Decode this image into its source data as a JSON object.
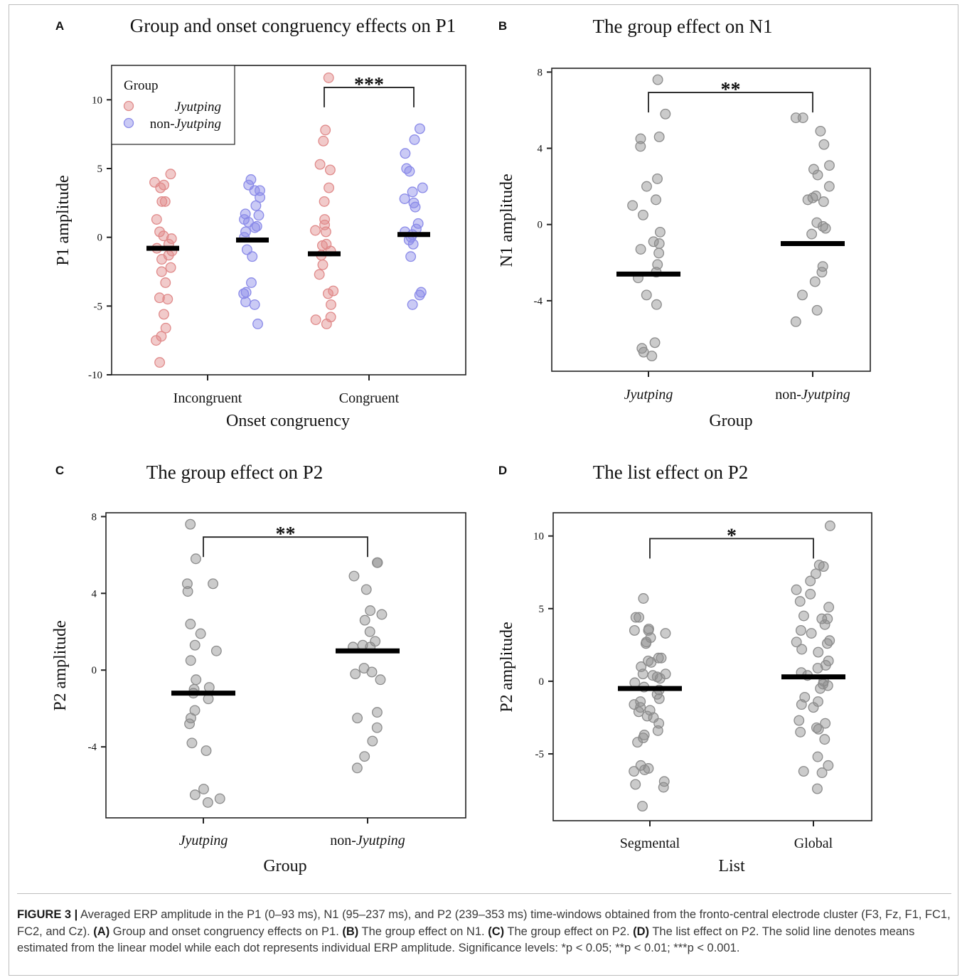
{
  "caption": {
    "label": "FIGURE 3 |",
    "segments": [
      {
        "t": " Averaged ERP amplitude in the P1 (0–93 ms), N1 (95–237 ms), and P2 (239–353 ms) time-windows obtained from the fronto-central electrode cluster (F3, Fz, F1, FC1, FC2, and Cz). ",
        "b": false
      },
      {
        "t": "(A)",
        "b": true
      },
      {
        "t": " Group and onset congruency effects on P1. ",
        "b": false
      },
      {
        "t": "(B)",
        "b": true
      },
      {
        "t": " The group effect on N1. ",
        "b": false
      },
      {
        "t": "(C)",
        "b": true
      },
      {
        "t": " The group effect on P2. ",
        "b": false
      },
      {
        "t": "(D)",
        "b": true
      },
      {
        "t": " The list effect on P2. The solid line denotes means estimated from the linear model while each dot represents individual ERP amplitude. Significance levels: *p < 0.05; **p < 0.01; ***p < 0.001.",
        "b": false
      }
    ]
  },
  "colors": {
    "jyutping": "#e08a8a",
    "non_jyutping": "#8a8ae8",
    "grey": "#8c8c8c",
    "mean": "#000000"
  },
  "chart_data": [
    {
      "letter": "A",
      "type": "scatter",
      "title": "Group and onset congruency effects on P1",
      "xlabel": "Onset congruency",
      "ylabel": "P1 amplitude",
      "ylim": [
        -10,
        12.5
      ],
      "yticks": [
        10,
        5,
        0,
        -5,
        -10
      ],
      "categories": [
        "Incongruent",
        "Congruent"
      ],
      "legend": {
        "title": "Group",
        "position": "top-left",
        "entries": [
          "Jyutping",
          "non-Jyutping"
        ]
      },
      "significance": {
        "label": "***",
        "between": [
          "Congruent / Jyutping",
          "Congruent / non-Jyutping"
        ]
      },
      "series": [
        {
          "name": "Jyutping",
          "color": "jyutping",
          "groups": [
            {
              "category": "Incongruent",
              "mean": -0.8,
              "points": [
                4.6,
                4.0,
                3.8,
                3.6,
                2.6,
                2.6,
                1.3,
                0.4,
                0.1,
                -0.1,
                -0.5,
                -0.8,
                -1.0,
                -1.3,
                -1.6,
                -2.2,
                -2.5,
                -3.3,
                -4.4,
                -4.5,
                -5.6,
                -6.6,
                -7.2,
                -7.5,
                -9.1
              ]
            },
            {
              "category": "Congruent",
              "mean": -1.2,
              "points": [
                11.6,
                7.8,
                7.0,
                5.3,
                4.9,
                3.6,
                2.6,
                1.3,
                0.9,
                0.5,
                0.4,
                -0.5,
                -0.6,
                -1.0,
                -1.3,
                -2.0,
                -2.7,
                -3.9,
                -4.1,
                -4.9,
                -5.8,
                -6.0,
                -6.3
              ]
            }
          ]
        },
        {
          "name": "non-Jyutping",
          "color": "non_jyutping",
          "groups": [
            {
              "category": "Incongruent",
              "mean": -0.2,
              "points": [
                4.2,
                3.8,
                3.4,
                3.4,
                2.9,
                2.3,
                1.7,
                1.6,
                1.3,
                1.1,
                0.8,
                0.7,
                0.4,
                0.0,
                -0.9,
                -1.4,
                -3.3,
                -4.0,
                -4.1,
                -4.7,
                -4.9,
                -6.3
              ]
            },
            {
              "category": "Congruent",
              "mean": 0.2,
              "points": [
                7.9,
                7.1,
                6.1,
                5.0,
                4.8,
                3.6,
                3.3,
                2.8,
                2.5,
                2.2,
                1.0,
                0.6,
                0.4,
                0.2,
                0.0,
                -0.2,
                -0.5,
                -1.4,
                -4.0,
                -4.2,
                -4.9
              ]
            }
          ]
        }
      ]
    },
    {
      "letter": "B",
      "type": "scatter",
      "title": "The group effect on N1",
      "xlabel": "Group",
      "ylabel": "N1 amplitude",
      "ylim": [
        -7.7,
        8.2
      ],
      "yticks": [
        8,
        4,
        0,
        -4
      ],
      "categories": [
        "Jyutping",
        "non-Jyutping"
      ],
      "italic_categories": true,
      "significance": {
        "label": "**",
        "between": [
          "Jyutping",
          "non-Jyutping"
        ]
      },
      "series": [
        {
          "name": "",
          "color": "grey",
          "groups": [
            {
              "category": "Jyutping",
              "mean": -2.6,
              "points": [
                7.6,
                5.8,
                4.6,
                4.5,
                4.1,
                2.4,
                2.0,
                1.3,
                1.0,
                0.5,
                -0.4,
                -0.9,
                -1.0,
                -1.3,
                -1.5,
                -2.1,
                -2.5,
                -2.8,
                -3.7,
                -4.2,
                -6.2,
                -6.5,
                -6.7,
                -6.9
              ]
            },
            {
              "category": "non-Jyutping",
              "mean": -1.0,
              "points": [
                5.6,
                5.6,
                4.9,
                4.2,
                3.1,
                2.9,
                2.6,
                2.0,
                1.5,
                1.4,
                1.3,
                1.2,
                0.1,
                -0.1,
                -0.2,
                -0.5,
                -2.2,
                -2.5,
                -3.0,
                -3.7,
                -4.5,
                -5.1
              ]
            }
          ]
        }
      ]
    },
    {
      "letter": "C",
      "type": "scatter",
      "title": "The group effect on P2",
      "xlabel": "Group",
      "ylabel": "P2 amplitude",
      "ylim": [
        -7.7,
        8.2
      ],
      "yticks": [
        8,
        4,
        0,
        -4
      ],
      "categories": [
        "Jyutping",
        "non-Jyutping"
      ],
      "italic_categories": true,
      "significance": {
        "label": "**",
        "between": [
          "Jyutping",
          "non-Jyutping"
        ]
      },
      "series": [
        {
          "name": "",
          "color": "grey",
          "groups": [
            {
              "category": "Jyutping",
              "mean": -1.2,
              "points": [
                7.6,
                5.8,
                4.5,
                4.5,
                4.1,
                2.4,
                1.9,
                1.3,
                1.0,
                0.5,
                -0.5,
                -0.9,
                -1.0,
                -1.2,
                -1.5,
                -2.1,
                -2.5,
                -2.8,
                -3.8,
                -4.2,
                -6.2,
                -6.5,
                -6.7,
                -6.9
              ]
            },
            {
              "category": "non-Jyutping",
              "mean": 1.0,
              "points": [
                5.6,
                5.6,
                4.9,
                4.2,
                3.1,
                2.9,
                2.6,
                2.0,
                1.5,
                1.3,
                1.2,
                1.2,
                0.1,
                -0.1,
                -0.2,
                -0.5,
                -2.2,
                -2.5,
                -3.0,
                -3.7,
                -4.5,
                -5.1
              ]
            }
          ]
        }
      ]
    },
    {
      "letter": "D",
      "type": "scatter",
      "title": "The list effect on P2",
      "xlabel": "List",
      "ylabel": "P2 amplitude",
      "ylim": [
        -9.6,
        11.6
      ],
      "yticks": [
        10,
        5,
        0,
        -5
      ],
      "categories": [
        "Segmental",
        "Global"
      ],
      "italic_categories": false,
      "significance": {
        "label": "*",
        "between": [
          "Segmental",
          "Global"
        ]
      },
      "series": [
        {
          "name": "",
          "color": "grey",
          "groups": [
            {
              "category": "Segmental",
              "mean": -0.5,
              "points": [
                5.7,
                4.4,
                4.4,
                3.6,
                3.5,
                3.5,
                3.3,
                3.0,
                2.7,
                2.6,
                1.6,
                1.6,
                1.4,
                1.3,
                1.0,
                0.5,
                0.5,
                0.4,
                0.3,
                0.2,
                -0.1,
                -0.4,
                -0.6,
                -0.9,
                -1.2,
                -1.4,
                -1.6,
                -1.8,
                -2.0,
                -2.1,
                -2.4,
                -2.5,
                -2.9,
                -3.4,
                -3.7,
                -3.9,
                -4.2,
                -5.8,
                -6.1,
                -6.2,
                -6.0,
                -6.9,
                -7.1,
                -7.3,
                -8.6
              ]
            },
            {
              "category": "Global",
              "mean": 0.3,
              "points": [
                10.7,
                8.0,
                7.9,
                7.4,
                6.9,
                6.3,
                6.0,
                5.5,
                5.1,
                4.5,
                4.3,
                4.3,
                3.9,
                3.5,
                3.3,
                2.8,
                2.7,
                2.6,
                2.2,
                2.0,
                1.4,
                1.1,
                0.9,
                0.6,
                0.4,
                0.0,
                -0.2,
                -0.3,
                -0.5,
                -1.1,
                -1.4,
                -1.6,
                -1.8,
                -2.7,
                -2.9,
                -3.2,
                -3.3,
                -3.5,
                -4.0,
                -5.2,
                -5.8,
                -6.2,
                -6.3,
                -7.4
              ]
            }
          ]
        }
      ]
    }
  ]
}
